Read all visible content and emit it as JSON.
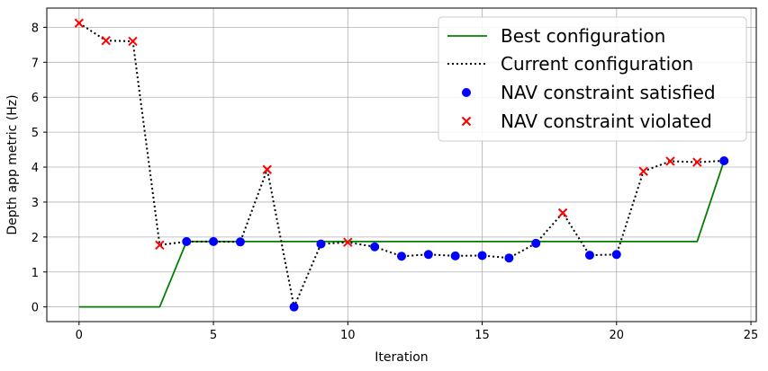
{
  "chart_data": {
    "type": "line",
    "xlabel": "Iteration",
    "ylabel": "Depth app metric (Hz)",
    "xlim": [
      -1.2,
      25.2
    ],
    "ylim": [
      -0.42,
      8.55
    ],
    "xticks": [
      0,
      5,
      10,
      15,
      20,
      25
    ],
    "yticks": [
      0,
      1,
      2,
      3,
      4,
      5,
      6,
      7,
      8
    ],
    "grid": true,
    "legend_position": "top-right",
    "series": [
      {
        "name": "Best configuration",
        "kind": "line",
        "color": "#008000",
        "x": [
          0,
          1,
          2,
          3,
          4,
          5,
          6,
          7,
          8,
          9,
          10,
          11,
          12,
          13,
          14,
          15,
          16,
          17,
          18,
          19,
          20,
          21,
          22,
          23,
          24
        ],
        "y": [
          0,
          0,
          0,
          0,
          1.87,
          1.87,
          1.87,
          1.87,
          1.87,
          1.87,
          1.87,
          1.87,
          1.87,
          1.87,
          1.87,
          1.87,
          1.87,
          1.87,
          1.87,
          1.87,
          1.87,
          1.87,
          1.87,
          1.87,
          4.18
        ]
      },
      {
        "name": "Current configuration",
        "kind": "dotted-line",
        "color": "#000000",
        "x": [
          0,
          1,
          2,
          3,
          4,
          5,
          6,
          7,
          8,
          9,
          10,
          11,
          12,
          13,
          14,
          15,
          16,
          17,
          18,
          19,
          20,
          21,
          22,
          23,
          24
        ],
        "y": [
          8.12,
          7.62,
          7.6,
          1.77,
          1.87,
          1.87,
          1.86,
          3.93,
          0.0,
          1.8,
          1.85,
          1.72,
          1.45,
          1.5,
          1.46,
          1.47,
          1.4,
          1.82,
          2.69,
          1.48,
          1.5,
          3.88,
          4.17,
          4.14,
          4.18
        ]
      },
      {
        "name": "NAV constraint satisfied",
        "kind": "scatter",
        "marker": "circle",
        "color": "#0000ff",
        "x": [
          4,
          5,
          6,
          8,
          9,
          11,
          12,
          13,
          14,
          15,
          16,
          17,
          19,
          20,
          24
        ],
        "y": [
          1.87,
          1.87,
          1.86,
          0.0,
          1.8,
          1.72,
          1.45,
          1.5,
          1.46,
          1.47,
          1.4,
          1.82,
          1.48,
          1.5,
          4.18
        ]
      },
      {
        "name": "NAV constraint violated",
        "kind": "scatter",
        "marker": "x",
        "color": "#ff0000",
        "x": [
          0,
          1,
          2,
          3,
          7,
          10,
          18,
          21,
          22,
          23
        ],
        "y": [
          8.12,
          7.62,
          7.6,
          1.77,
          3.93,
          1.85,
          2.69,
          3.88,
          4.17,
          4.14
        ]
      }
    ]
  }
}
